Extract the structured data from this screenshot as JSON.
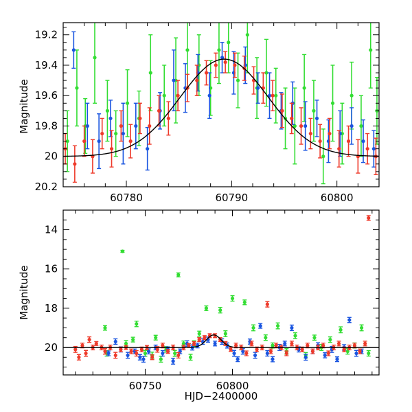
{
  "chart_data": [
    {
      "type": "scatter",
      "title": "",
      "xlabel": "",
      "ylabel": "Magnitude",
      "xlim": [
        60774,
        60804
      ],
      "ylim": [
        20.2,
        19.12
      ],
      "y_inverted": true,
      "grid": false,
      "xticks": [
        60780,
        60790,
        60800
      ],
      "yticks": [
        19.2,
        19.4,
        19.6,
        19.8,
        20,
        20.2
      ],
      "xminor_step": 2,
      "yminor_step": 0.05,
      "colors": {
        "green": "#33dd33",
        "blue": "#1a55e0",
        "red": "#ee3a2a",
        "model": "#000000"
      },
      "model_curve": {
        "x0": 60789.3,
        "peak_mag": 19.36,
        "base_mag": 20.0,
        "sigma": 4.2
      },
      "series": [
        {
          "color": "green",
          "x": [
            60774.4,
            60775.3,
            60776.1,
            60777.0,
            60778.2,
            60779.0,
            60780.1,
            60781.2,
            60782.3,
            60783.6,
            60784.7,
            60785.8,
            60786.9,
            60788.0,
            60788.8,
            60789.7,
            60790.6,
            60791.5,
            60792.4,
            60793.3,
            60794.2,
            60795.1,
            60796.0,
            60796.9,
            60797.8,
            60798.7,
            60799.6,
            60800.5,
            60801.4,
            60802.3,
            60803.2,
            60803.8
          ],
          "y": [
            19.9,
            19.55,
            19.8,
            19.35,
            19.7,
            19.85,
            19.65,
            19.75,
            19.45,
            19.6,
            19.5,
            19.3,
            19.4,
            19.55,
            19.3,
            19.25,
            19.5,
            19.2,
            19.55,
            19.45,
            19.6,
            19.75,
            19.8,
            19.55,
            19.7,
            20.0,
            19.65,
            19.85,
            19.6,
            19.8,
            19.3,
            19.7
          ],
          "err": [
            0.2,
            0.25,
            0.18,
            0.3,
            0.2,
            0.15,
            0.22,
            0.18,
            0.25,
            0.2,
            0.28,
            0.25,
            0.2,
            0.18,
            0.22,
            0.2,
            0.18,
            0.25,
            0.2,
            0.22,
            0.18,
            0.2,
            0.25,
            0.22,
            0.2,
            0.18,
            0.25,
            0.2,
            0.22,
            0.2,
            0.25,
            0.22
          ]
        },
        {
          "color": "blue",
          "x": [
            60775.0,
            60776.3,
            60777.4,
            60778.5,
            60779.7,
            60780.9,
            60782.0,
            60783.2,
            60784.5,
            60785.6,
            60786.8,
            60787.9,
            60789.1,
            60790.2,
            60791.3,
            60792.5,
            60793.6,
            60794.7,
            60795.8,
            60797.0,
            60798.1,
            60799.2,
            60800.3,
            60801.4,
            60802.5,
            60803.5
          ],
          "y": [
            19.3,
            19.8,
            19.9,
            19.75,
            19.85,
            19.8,
            19.95,
            19.7,
            19.5,
            19.55,
            19.45,
            19.6,
            19.35,
            19.45,
            19.4,
            19.55,
            19.6,
            19.7,
            19.65,
            19.8,
            19.75,
            19.9,
            19.85,
            19.8,
            19.9,
            19.95
          ],
          "err": [
            0.12,
            0.15,
            0.18,
            0.12,
            0.2,
            0.15,
            0.14,
            0.12,
            0.2,
            0.16,
            0.12,
            0.15,
            0.1,
            0.14,
            0.12,
            0.1,
            0.15,
            0.12,
            0.14,
            0.16,
            0.12,
            0.14,
            0.15,
            0.12,
            0.14,
            0.12
          ]
        },
        {
          "color": "red",
          "x": [
            60774.2,
            60775.1,
            60776.0,
            60776.8,
            60777.7,
            60778.6,
            60779.5,
            60780.4,
            60781.3,
            60782.2,
            60783.1,
            60784.0,
            60784.9,
            60785.8,
            60786.7,
            60787.6,
            60788.5,
            60789.4,
            60790.3,
            60791.2,
            60792.1,
            60793.0,
            60793.9,
            60794.8,
            60795.7,
            60796.6,
            60797.5,
            60798.4,
            60799.3,
            60800.2,
            60801.1,
            60802.0,
            60802.9,
            60803.7
          ],
          "y": [
            19.95,
            20.05,
            19.9,
            20.0,
            19.85,
            19.95,
            19.8,
            19.9,
            19.75,
            19.8,
            19.7,
            19.75,
            19.6,
            19.55,
            19.5,
            19.45,
            19.4,
            19.38,
            19.4,
            19.42,
            19.5,
            19.55,
            19.6,
            19.7,
            19.75,
            19.8,
            19.85,
            19.9,
            19.85,
            19.95,
            19.9,
            20.0,
            19.95,
            20.0
          ],
          "err": [
            0.1,
            0.12,
            0.1,
            0.11,
            0.1,
            0.12,
            0.1,
            0.11,
            0.1,
            0.12,
            0.1,
            0.11,
            0.1,
            0.09,
            0.1,
            0.08,
            0.08,
            0.07,
            0.08,
            0.08,
            0.09,
            0.1,
            0.1,
            0.11,
            0.1,
            0.12,
            0.1,
            0.11,
            0.1,
            0.12,
            0.1,
            0.11,
            0.1,
            0.12
          ]
        }
      ]
    },
    {
      "type": "scatter",
      "title": "",
      "xlabel": "HJD−2400000",
      "ylabel": "Magnitude",
      "xlim": [
        60703,
        60884
      ],
      "ylim": [
        21.4,
        13.0
      ],
      "y_inverted": true,
      "grid": false,
      "xticks": [
        60750,
        60800
      ],
      "yticks": [
        14,
        16,
        18,
        20
      ],
      "xminor_step": 10,
      "yminor_step": 0.5,
      "colors": {
        "green": "#33dd33",
        "blue": "#1a55e0",
        "red": "#ee3a2a",
        "model": "#000000"
      },
      "model_curve": {
        "x0": 60789.3,
        "peak_mag": 19.36,
        "base_mag": 20.0,
        "sigma": 4.2
      },
      "series": [
        {
          "color": "green",
          "x": [
            60727,
            60728,
            60737,
            60739,
            60743,
            60745,
            60750,
            60754,
            60756,
            60759,
            60762,
            60767,
            60769,
            60772,
            60776,
            60778,
            60781,
            60785,
            60793,
            60796,
            60800,
            60807,
            60812,
            60819,
            60823,
            60826,
            60831,
            60836,
            60842,
            60847,
            60851,
            60856,
            60862,
            60866,
            60870,
            60874,
            60878
          ],
          "y": [
            19.0,
            20.3,
            15.1,
            19.8,
            19.6,
            18.8,
            20.3,
            20.4,
            19.5,
            20.6,
            20.1,
            20.3,
            16.3,
            19.8,
            20.5,
            19.8,
            19.3,
            18.0,
            18.1,
            19.3,
            17.5,
            17.7,
            19.0,
            19.5,
            19.9,
            18.9,
            20.2,
            19.4,
            20.4,
            19.5,
            20.0,
            19.6,
            19.1,
            20.2,
            19.9,
            19.0,
            20.3
          ],
          "err": [
            0.12,
            0.14,
            0.05,
            0.15,
            0.12,
            0.14,
            0.15,
            0.16,
            0.12,
            0.15,
            0.14,
            0.15,
            0.1,
            0.13,
            0.15,
            0.14,
            0.13,
            0.12,
            0.14,
            0.15,
            0.14,
            0.12,
            0.15,
            0.14,
            0.13,
            0.15,
            0.14,
            0.15,
            0.14,
            0.13,
            0.15,
            0.14,
            0.15,
            0.14,
            0.13,
            0.15,
            0.14
          ]
        },
        {
          "color": "blue",
          "x": [
            60729,
            60733,
            60736,
            60740,
            60744,
            60747,
            60749,
            60752,
            60756,
            60760,
            60763,
            60766,
            60770,
            60774,
            60777,
            60780,
            60783,
            60786,
            60790,
            60794,
            60797,
            60801,
            60803,
            60806,
            60810,
            60813,
            60816,
            60820,
            60823,
            60827,
            60830,
            60834,
            60838,
            60842,
            60846,
            60849,
            60853,
            60857,
            60860,
            60864,
            60867,
            60871,
            60874
          ],
          "y": [
            20.3,
            19.7,
            20.1,
            20.4,
            20.2,
            20.5,
            20.6,
            20.2,
            20.0,
            20.3,
            20.1,
            20.7,
            20.2,
            19.8,
            20.0,
            19.9,
            19.7,
            19.6,
            19.8,
            19.7,
            19.9,
            20.3,
            20.6,
            20.2,
            19.7,
            20.4,
            18.9,
            20.3,
            20.6,
            20.0,
            19.8,
            19.0,
            20.1,
            20.5,
            20.2,
            19.9,
            20.4,
            20.1,
            20.6,
            20.0,
            18.6,
            20.3,
            20.2
          ],
          "err": [
            0.12,
            0.14,
            0.13,
            0.15,
            0.12,
            0.14,
            0.15,
            0.13,
            0.12,
            0.14,
            0.13,
            0.15,
            0.12,
            0.14,
            0.13,
            0.12,
            0.14,
            0.13,
            0.12,
            0.14,
            0.13,
            0.15,
            0.12,
            0.14,
            0.13,
            0.15,
            0.12,
            0.14,
            0.13,
            0.15,
            0.12,
            0.14,
            0.13,
            0.15,
            0.12,
            0.14,
            0.13,
            0.15,
            0.12,
            0.14,
            0.13,
            0.15,
            0.12
          ]
        },
        {
          "color": "red",
          "x": [
            60710,
            60712,
            60714,
            60716,
            60718,
            60720,
            60722,
            60725,
            60727,
            60730,
            60733,
            60736,
            60739,
            60742,
            60745,
            60748,
            60751,
            60754,
            60757,
            60760,
            60763,
            60766,
            60769,
            60772,
            60775,
            60778,
            60781,
            60784,
            60787,
            60790,
            60793,
            60796,
            60799,
            60802,
            60805,
            60808,
            60811,
            60814,
            60817,
            60820,
            60822,
            60825,
            60828,
            60831,
            60834,
            60837,
            60840,
            60843,
            60846,
            60849,
            60852,
            60855,
            60858,
            60861,
            60864,
            60867,
            60870,
            60873,
            60876,
            60878
          ],
          "y": [
            20.1,
            20.5,
            19.9,
            20.3,
            19.6,
            20.0,
            19.8,
            20.0,
            20.2,
            20.0,
            20.4,
            20.1,
            20.0,
            20.2,
            20.3,
            20.1,
            20.0,
            20.5,
            20.1,
            19.9,
            20.2,
            20.0,
            20.4,
            20.0,
            19.9,
            19.8,
            19.6,
            19.5,
            19.4,
            19.4,
            19.6,
            19.8,
            20.1,
            19.9,
            20.0,
            20.3,
            19.8,
            20.1,
            20.0,
            17.8,
            20.2,
            19.9,
            20.0,
            20.3,
            19.8,
            20.0,
            20.1,
            19.9,
            20.2,
            20.0,
            19.9,
            20.3,
            20.0,
            19.8,
            20.1,
            20.0,
            19.9,
            20.2,
            19.8,
            13.4
          ],
          "err": [
            0.15,
            0.14,
            0.12,
            0.15,
            0.14,
            0.12,
            0.1,
            0.12,
            0.14,
            0.12,
            0.15,
            0.12,
            0.1,
            0.12,
            0.14,
            0.12,
            0.1,
            0.12,
            0.14,
            0.12,
            0.1,
            0.12,
            0.14,
            0.12,
            0.1,
            0.1,
            0.1,
            0.1,
            0.1,
            0.1,
            0.1,
            0.1,
            0.1,
            0.12,
            0.12,
            0.12,
            0.12,
            0.12,
            0.12,
            0.14,
            0.12,
            0.12,
            0.12,
            0.12,
            0.12,
            0.12,
            0.12,
            0.12,
            0.12,
            0.12,
            0.12,
            0.12,
            0.12,
            0.12,
            0.12,
            0.12,
            0.12,
            0.12,
            0.12,
            0.12
          ]
        }
      ]
    }
  ]
}
